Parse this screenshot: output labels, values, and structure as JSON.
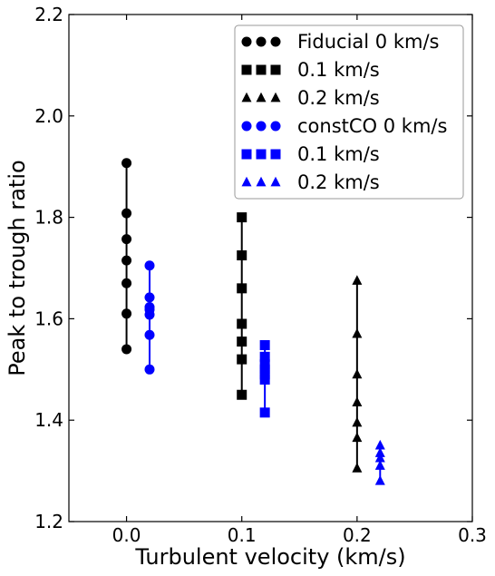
{
  "chart_data": {
    "type": "scatter",
    "xlabel": "Turbulent velocity (km/s)",
    "ylabel": "Peak to trough ratio",
    "xlim": [
      -0.05,
      0.3
    ],
    "ylim": [
      1.2,
      2.2
    ],
    "x_ticks": [
      0.0,
      0.1,
      0.2,
      0.3
    ],
    "x_tick_labels": [
      "0.0",
      "0.1",
      "0.2",
      "0.3"
    ],
    "y_ticks": [
      1.2,
      1.4,
      1.6,
      1.8,
      2.0,
      2.2
    ],
    "y_tick_labels": [
      "1.2",
      "1.4",
      "1.6",
      "1.8",
      "2.0",
      "2.2"
    ],
    "grid": false,
    "legend_position": "top-right",
    "series": [
      {
        "name": "Fiducial 0 km/s",
        "color": "#000000",
        "marker": "circle",
        "x": 0.0,
        "values": [
          1.54,
          1.61,
          1.67,
          1.715,
          1.757,
          1.808,
          1.907
        ]
      },
      {
        "name": "0.1 km/s",
        "color": "#000000",
        "marker": "square",
        "x": 0.1,
        "values": [
          1.45,
          1.52,
          1.555,
          1.59,
          1.66,
          1.725,
          1.8
        ]
      },
      {
        "name": "0.2 km/s",
        "color": "#000000",
        "marker": "triangle",
        "x": 0.2,
        "values": [
          1.305,
          1.365,
          1.395,
          1.435,
          1.49,
          1.57,
          1.675
        ]
      },
      {
        "name": "constCO 0 km/s",
        "color": "#0000ff",
        "marker": "circle",
        "x": 0.02,
        "values": [
          1.5,
          1.568,
          1.608,
          1.618,
          1.623,
          1.642,
          1.705
        ]
      },
      {
        "name": "0.1 km/s",
        "color": "#0000ff",
        "marker": "square",
        "x": 0.12,
        "values": [
          1.415,
          1.48,
          1.49,
          1.5,
          1.51,
          1.525,
          1.548
        ]
      },
      {
        "name": "0.2 km/s",
        "color": "#0000ff",
        "marker": "triangle",
        "x": 0.22,
        "values": [
          1.28,
          1.31,
          1.325,
          1.335,
          1.35
        ]
      }
    ]
  }
}
